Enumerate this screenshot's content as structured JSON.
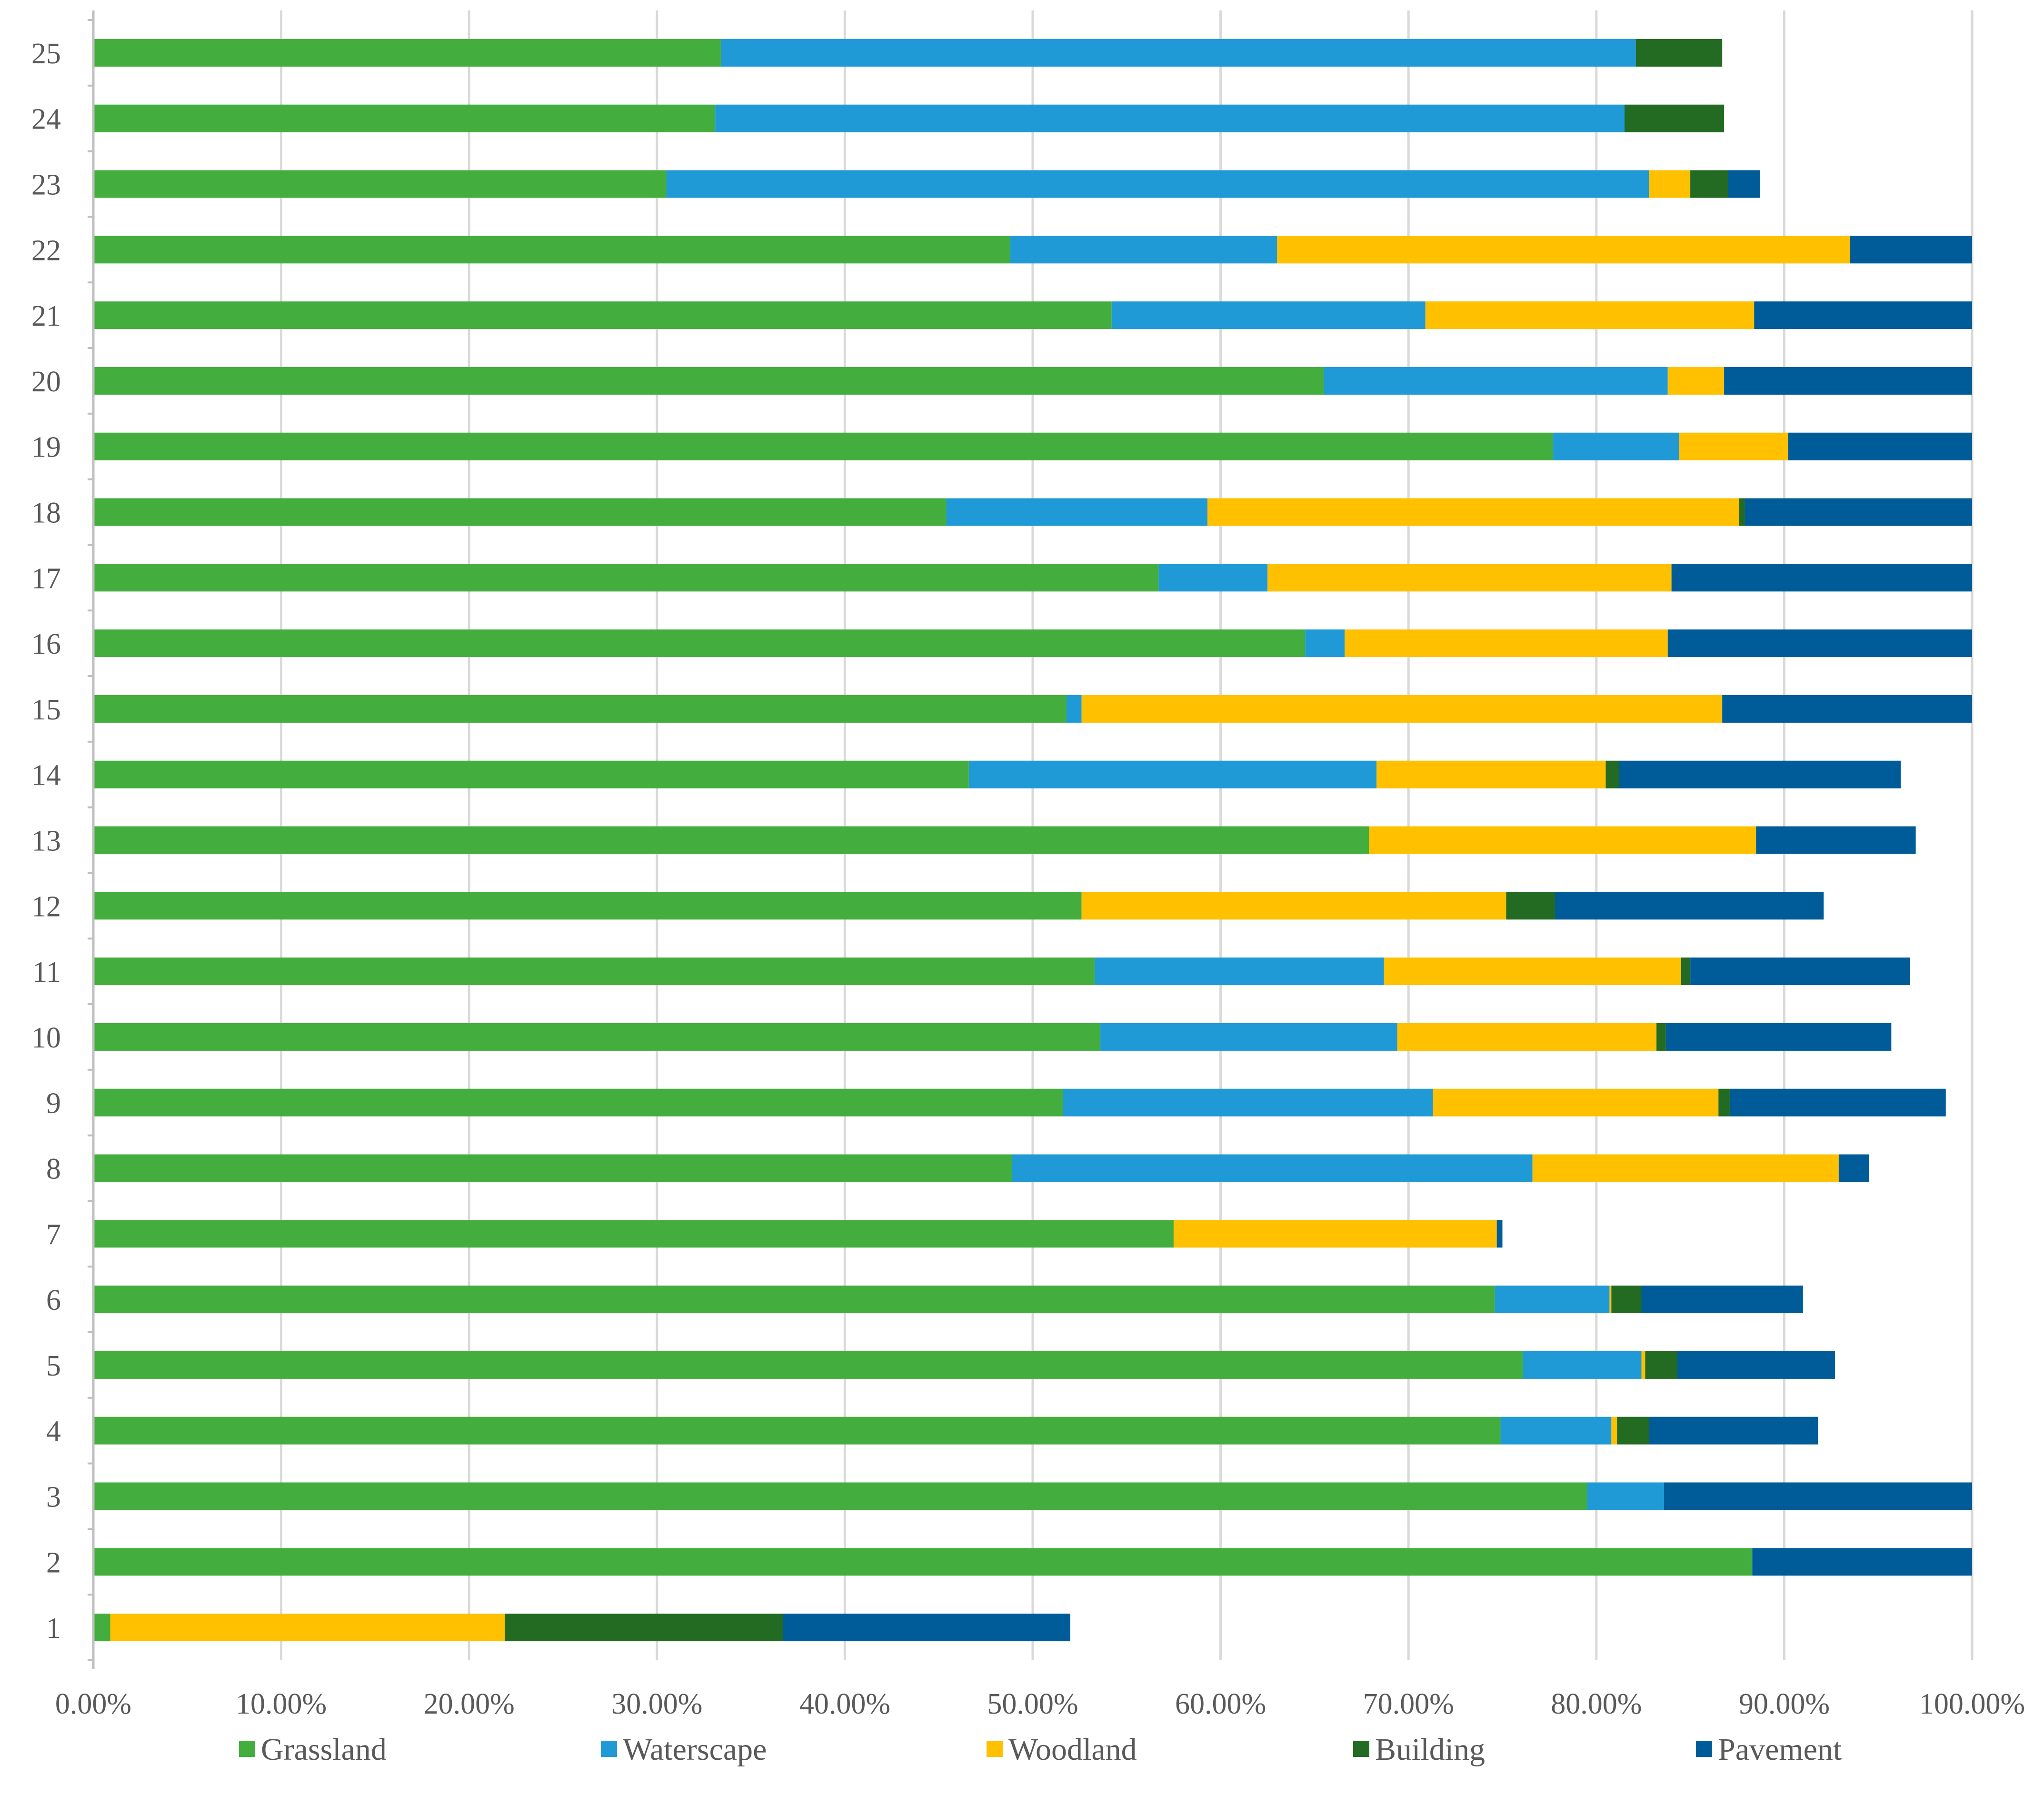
{
  "chart_data": {
    "type": "bar",
    "orientation": "horizontal",
    "stacked": true,
    "title": "",
    "xlabel": "",
    "ylabel": "",
    "xlim": [
      0,
      100
    ],
    "grid": true,
    "legend_position": "bottom",
    "categories": [
      "1",
      "2",
      "3",
      "4",
      "5",
      "6",
      "7",
      "8",
      "9",
      "10",
      "11",
      "12",
      "13",
      "14",
      "15",
      "16",
      "17",
      "18",
      "19",
      "20",
      "21",
      "22",
      "23",
      "24",
      "25"
    ],
    "x_ticks": [
      "0.00%",
      "10.00%",
      "20.00%",
      "30.00%",
      "40.00%",
      "50.00%",
      "60.00%",
      "70.00%",
      "80.00%",
      "90.00%",
      "100.00%"
    ],
    "series": [
      {
        "name": "Grassland",
        "color": "#43AE3D",
        "values": [
          0.9,
          88.3,
          79.5,
          74.9,
          76.1,
          74.6,
          57.5,
          48.9,
          51.6,
          53.6,
          53.3,
          52.6,
          67.9,
          46.6,
          51.8,
          64.5,
          56.7,
          45.4,
          77.7,
          65.5,
          54.2,
          48.8,
          30.5,
          33.1,
          33.4
        ]
      },
      {
        "name": "Waterscape",
        "color": "#1F9AD6",
        "values": [
          0,
          0,
          4.1,
          5.9,
          6.3,
          6.1,
          0,
          27.7,
          19.7,
          15.8,
          15.4,
          0,
          0,
          21.7,
          0.8,
          2.1,
          5.8,
          13.9,
          6.7,
          18.3,
          16.7,
          14.2,
          52.3,
          48.4,
          48.7
        ]
      },
      {
        "name": "Woodland",
        "color": "#FFC000",
        "values": [
          21.0,
          0,
          0,
          0.3,
          0.2,
          0.1,
          17.2,
          16.3,
          15.2,
          13.8,
          15.8,
          22.6,
          20.6,
          12.2,
          34.1,
          17.2,
          21.5,
          28.3,
          5.8,
          3.0,
          17.5,
          30.5,
          2.2,
          0,
          0
        ]
      },
      {
        "name": "Building",
        "color": "#236A23",
        "values": [
          14.8,
          0,
          0,
          1.7,
          1.7,
          1.6,
          0,
          0,
          0.6,
          0.5,
          0.5,
          2.6,
          0,
          0.7,
          0,
          0,
          0,
          0.3,
          0,
          0,
          0,
          0,
          2.0,
          5.3,
          4.6
        ]
      },
      {
        "name": "Pavement",
        "color": "#005C98",
        "values": [
          15.3,
          11.7,
          16.4,
          9.0,
          8.4,
          8.6,
          0.3,
          1.6,
          11.5,
          12.0,
          11.7,
          14.3,
          8.5,
          15.0,
          13.3,
          16.2,
          16.0,
          12.1,
          9.8,
          13.2,
          11.6,
          6.5,
          1.7,
          0,
          0
        ]
      }
    ]
  }
}
